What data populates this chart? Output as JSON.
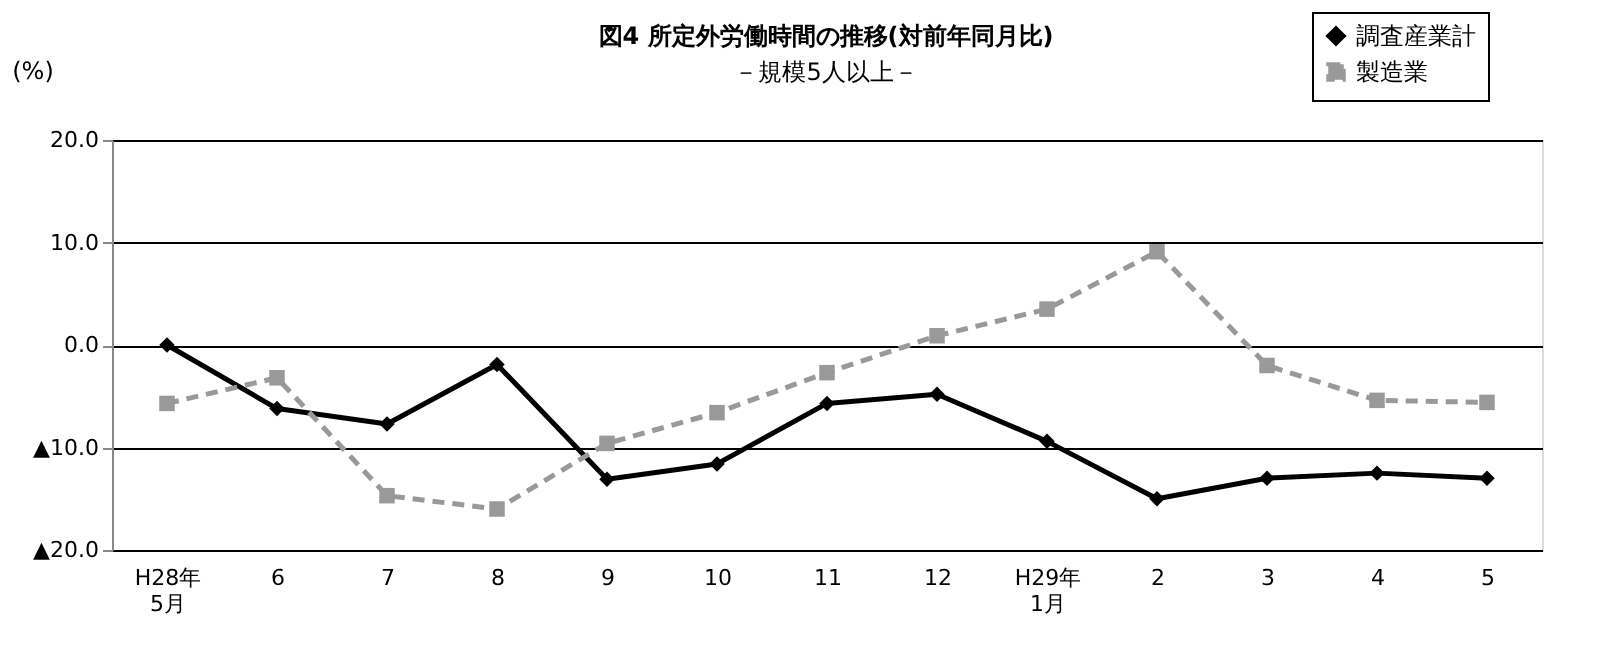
{
  "chart_data": {
    "type": "line",
    "title": "図4  所定外労働時間の推移(対前年同月比)",
    "subtitle": "－規模5人以上－",
    "ylabel": "(%)",
    "categories": [
      "H28年\n5月",
      "6",
      "7",
      "8",
      "9",
      "10",
      "11",
      "12",
      "H29年\n1月",
      "2",
      "3",
      "4",
      "5"
    ],
    "series": [
      {
        "name": "調査産業計",
        "color": "#000000",
        "marker": "diamond",
        "line_style": "solid",
        "values": [
          0.0,
          -6.2,
          -7.7,
          -1.9,
          -13.1,
          -11.6,
          -5.7,
          -4.8,
          -9.4,
          -15.0,
          -13.0,
          -12.5,
          -13.0
        ]
      },
      {
        "name": "製造業",
        "color": "#999999",
        "marker": "square",
        "line_style": "dashed",
        "values": [
          -5.7,
          -3.2,
          -14.7,
          -16.0,
          -9.6,
          -6.6,
          -2.7,
          0.9,
          3.5,
          9.1,
          -2.0,
          -5.4,
          -5.6
        ]
      }
    ],
    "ylim": [
      -20,
      20
    ],
    "yticks": [
      {
        "value": -20,
        "label": "▲20.0"
      },
      {
        "value": -10,
        "label": "▲10.0"
      },
      {
        "value": 0,
        "label": "0.0"
      },
      {
        "value": 10,
        "label": "10.0"
      },
      {
        "value": 20,
        "label": "20.0"
      }
    ],
    "grid": "y",
    "legend": "top right"
  }
}
